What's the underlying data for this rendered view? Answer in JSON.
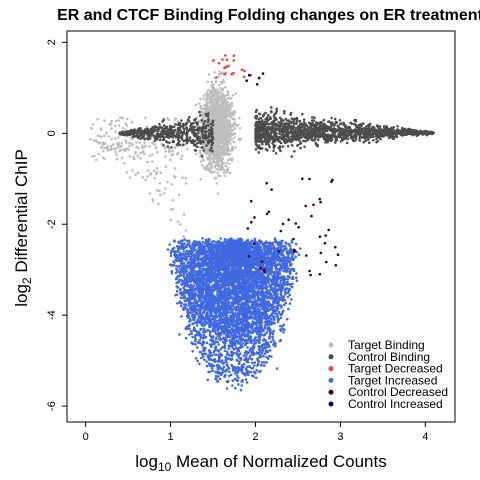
{
  "chart_data": {
    "type": "scatter",
    "title": "ER and CTCF Binding Folding changes on ER treatment",
    "xlabel": {
      "prefix": "log",
      "sub": "10",
      "suffix": " Mean of Normalized Counts"
    },
    "ylabel": {
      "prefix": "log",
      "sub": "2",
      "suffix": " Differential ChIP"
    },
    "xlim": [
      -0.22,
      4.35
    ],
    "ylim": [
      -6.35,
      2.25
    ],
    "xticks": [
      0,
      1,
      2,
      3,
      4
    ],
    "yticks": [
      -6,
      -4,
      -2,
      0,
      2
    ],
    "grid": false,
    "legend_position": "bottom-right",
    "series": [
      {
        "name": "Target Binding",
        "color": "#bebebe",
        "clusters": [
          {
            "count": 1600,
            "x_range": [
              1.15,
              2.0
            ],
            "y_range": [
              -1.8,
              1.5
            ],
            "peak": "diamond",
            "cx": 1.55,
            "cy": 0.1
          },
          {
            "count": 140,
            "x_range": [
              0.05,
              1.2
            ],
            "y_range": [
              -0.6,
              0.35
            ]
          },
          {
            "count": 90,
            "x_range": [
              0.2,
              1.2
            ],
            "y_range": [
              -2.4,
              -0.2
            ],
            "trail": true
          }
        ]
      },
      {
        "name": "Control Binding",
        "color": "#4d4d4d",
        "clusters": [
          {
            "count": 1500,
            "x_range": [
              1.85,
              4.1
            ],
            "y_range": [
              -1.2,
              1.2
            ],
            "peak": "fan_right",
            "cx": 2.0,
            "cy": 0.05
          },
          {
            "count": 500,
            "x_range": [
              0.4,
              1.5
            ],
            "y_range": [
              -0.5,
              0.5
            ],
            "peak": "fan_left",
            "cx": 1.5,
            "cy": 0.0
          }
        ]
      },
      {
        "name": "Target Decreased",
        "color": "#ef4040",
        "clusters": [
          {
            "count": 20,
            "x_range": [
              1.5,
              1.95
            ],
            "y_range": [
              1.2,
              1.75
            ]
          }
        ]
      },
      {
        "name": "Target Increased",
        "color": "#4169e1",
        "clusters": [
          {
            "count": 5200,
            "x_range": [
              0.95,
              3.5
            ],
            "y_range": [
              -5.9,
              -1.0
            ],
            "peak": "bulb",
            "cx": 1.75,
            "cy": -2.3
          }
        ]
      },
      {
        "name": "Control Decreased",
        "color": "#3b0010",
        "clusters": [
          {
            "count": 45,
            "x_range": [
              1.9,
              3.0
            ],
            "y_range": [
              -3.2,
              -0.95
            ]
          }
        ]
      },
      {
        "name": "Control Increased",
        "color": "#000070",
        "clusters": [
          {
            "count": 6,
            "x_range": [
              1.75,
              2.1
            ],
            "y_range": [
              1.05,
              1.35
            ]
          }
        ]
      }
    ]
  }
}
